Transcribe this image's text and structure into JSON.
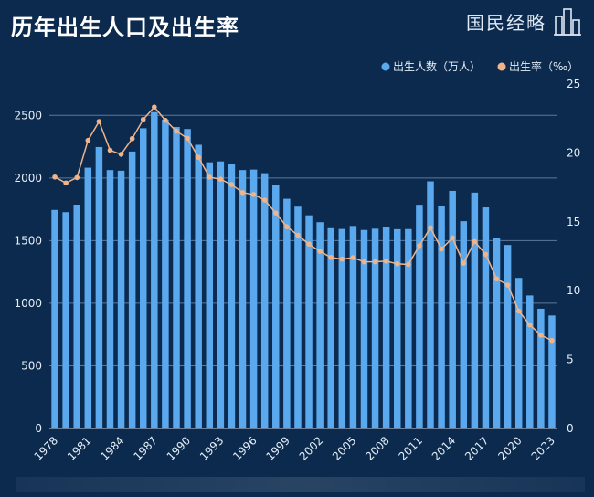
{
  "header": {
    "title": "历年出生人口及出生率",
    "brand": "国民经略",
    "logo_icon": "building-skyline-icon"
  },
  "colors": {
    "background": "#0b2a4e",
    "bar": "#5aa9ee",
    "line": "#f0b48a",
    "grid": "#7f98b8"
  },
  "chart_data": {
    "type": "bar",
    "title": "历年出生人口及出生率",
    "x": [
      1978,
      1979,
      1980,
      1981,
      1982,
      1983,
      1984,
      1985,
      1986,
      1987,
      1988,
      1989,
      1990,
      1991,
      1992,
      1993,
      1994,
      1995,
      1996,
      1997,
      1998,
      1999,
      2000,
      2001,
      2002,
      2003,
      2004,
      2005,
      2006,
      2007,
      2008,
      2009,
      2010,
      2011,
      2012,
      2013,
      2014,
      2015,
      2016,
      2017,
      2018,
      2019,
      2020,
      2021,
      2022,
      2023
    ],
    "x_tick_labels": [
      "1978",
      "1981",
      "1984",
      "1987",
      "1990",
      "1993",
      "1996",
      "1999",
      "2002",
      "2005",
      "2008",
      "2011",
      "2014",
      "2017",
      "2020",
      "2023"
    ],
    "series": [
      {
        "name": "出生人数（万人）",
        "kind": "bar",
        "axis": "left",
        "values": [
          1745,
          1727,
          1787,
          2082,
          2247,
          2063,
          2058,
          2211,
          2397,
          2526,
          2465,
          2407,
          2391,
          2265,
          2125,
          2132,
          2110,
          2063,
          2067,
          2038,
          1942,
          1834,
          1771,
          1702,
          1647,
          1599,
          1593,
          1617,
          1585,
          1595,
          1608,
          1591,
          1592,
          1786,
          1973,
          1776,
          1897,
          1655,
          1883,
          1765,
          1523,
          1465,
          1202,
          1062,
          956,
          902
        ]
      },
      {
        "name": "出生率（‰）",
        "kind": "line",
        "axis": "right",
        "values": [
          18.25,
          17.82,
          18.21,
          20.91,
          22.28,
          20.19,
          19.9,
          21.04,
          22.43,
          23.33,
          22.37,
          21.58,
          21.06,
          19.68,
          18.24,
          18.09,
          17.7,
          17.12,
          16.98,
          16.57,
          15.64,
          14.64,
          14.03,
          13.38,
          12.86,
          12.41,
          12.29,
          12.4,
          12.09,
          12.1,
          12.14,
          11.95,
          11.9,
          13.27,
          14.57,
          13.03,
          13.83,
          11.99,
          13.57,
          12.64,
          10.86,
          10.41,
          8.52,
          7.52,
          6.77,
          6.39
        ]
      }
    ],
    "y_left": {
      "ticks": [
        0,
        500,
        1000,
        1500,
        2000,
        2500
      ],
      "range": [
        0,
        2750
      ]
    },
    "y_right": {
      "ticks": [
        0,
        5,
        10,
        15,
        20,
        25
      ],
      "range": [
        0,
        25
      ]
    },
    "legend": {
      "placement": "top-right",
      "entries": [
        "出生人数（万人）",
        "出生率（‰）"
      ]
    },
    "grid": true
  }
}
